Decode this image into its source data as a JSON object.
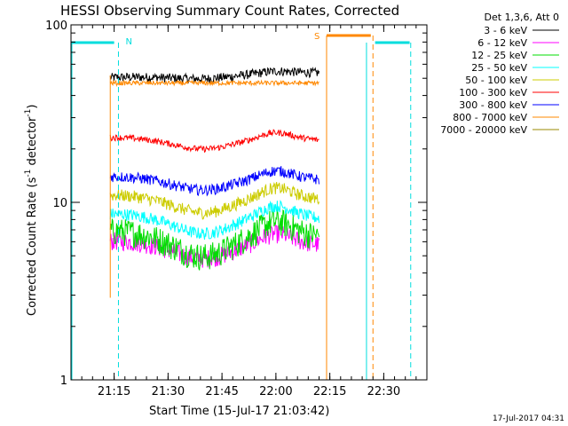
{
  "chart_data": {
    "type": "line",
    "title": "HESSI Observing Summary Count Rates, Corrected",
    "xlabel": "Start Time (15-Jul-17 21:03:42)",
    "ylabel_main": "Corrected Count Rate (s",
    "ylabel_sup1": "-1",
    "ylabel_mid": " detector",
    "ylabel_sup2": "-1",
    "ylabel_end": ")",
    "y_scale": "log",
    "ylim": [
      1,
      100
    ],
    "xlim_minutes": [
      21.05,
      22.7
    ],
    "x_ticks": [
      {
        "label": "21:15",
        "value": 21.25
      },
      {
        "label": "21:30",
        "value": 21.5
      },
      {
        "label": "21:45",
        "value": 21.75
      },
      {
        "label": "22:00",
        "value": 22.0
      },
      {
        "label": "22:15",
        "value": 22.25
      },
      {
        "label": "22:30",
        "value": 22.5
      }
    ],
    "y_ticks": [
      {
        "label": "1",
        "value": 1
      },
      {
        "label": "10",
        "value": 10
      },
      {
        "label": "100",
        "value": 100
      }
    ],
    "legend_header": "Det 1,3,6, Att 0",
    "legend_position": "top-right outside plot",
    "series": [
      {
        "name": "3 - 6 keV",
        "color": "#000000",
        "base": 50,
        "amp": 0.04,
        "noise": 0.06
      },
      {
        "name": "6 - 12 keV",
        "color": "#ff00ff",
        "base": 5.8,
        "amp": 0.18,
        "noise": 0.12
      },
      {
        "name": "12 - 25 keV",
        "color": "#00dd00",
        "base": 6.5,
        "amp": 0.25,
        "noise": 0.18
      },
      {
        "name": "25 - 50 keV",
        "color": "#00ffff",
        "base": 8.2,
        "amp": 0.2,
        "noise": 0.08
      },
      {
        "name": "50 - 100 keV",
        "color": "#cccc00",
        "base": 10.5,
        "amp": 0.18,
        "noise": 0.08
      },
      {
        "name": "100 - 300 keV",
        "color": "#ff0000",
        "base": 22.5,
        "amp": 0.12,
        "noise": 0.04
      },
      {
        "name": "300 - 800 keV",
        "color": "#0000ff",
        "base": 13.5,
        "amp": 0.14,
        "noise": 0.07
      },
      {
        "name": "800 - 7000 keV",
        "color": "#ff8800",
        "base": 47,
        "amp": 0.0,
        "noise": 0.03
      },
      {
        "name": "7000 - 20000 keV",
        "color": "#998800",
        "base": 0,
        "amp": 0,
        "noise": 0
      }
    ],
    "data_interval": [
      21.232,
      22.2
    ],
    "markers": [
      {
        "label": "N",
        "value": 21.27,
        "color": "#00dddd"
      },
      {
        "label": "S",
        "value": 22.235,
        "color": "#ff8800"
      }
    ],
    "footer_timestamp": "17-Jul-2017 04:31"
  }
}
